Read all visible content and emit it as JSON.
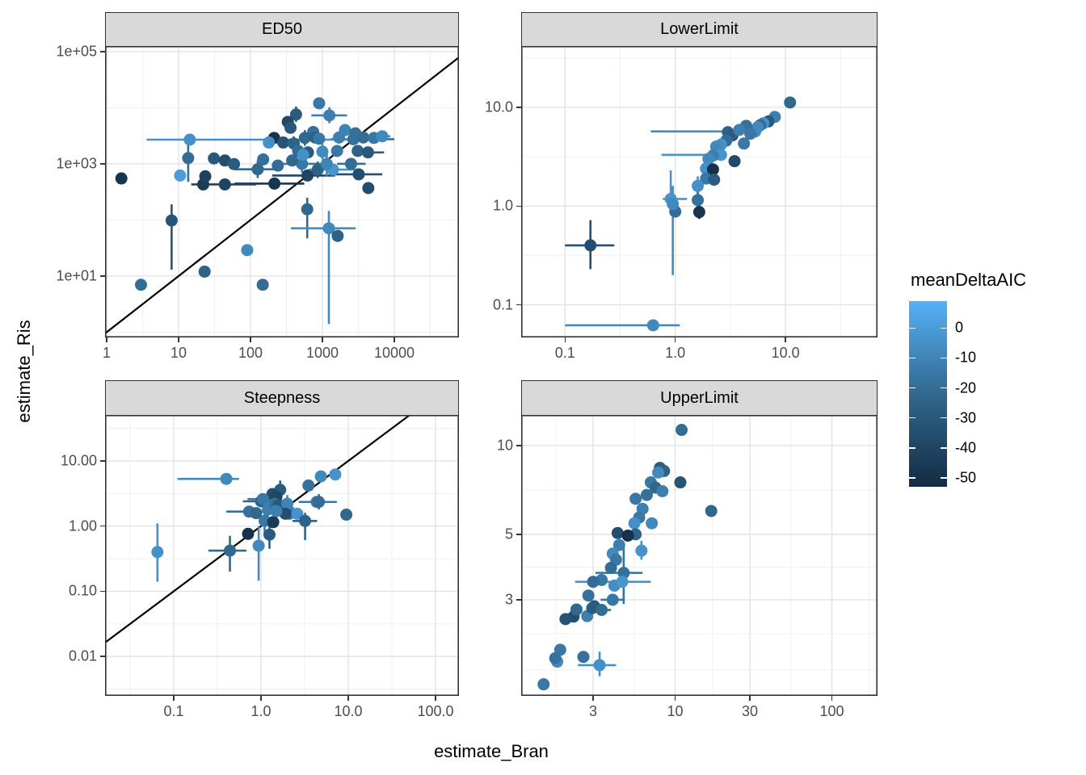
{
  "figure": {
    "background": "#FFFFFF"
  },
  "axis_titles": {
    "x": "estimate_Bran",
    "y": "estimate_Ris"
  },
  "legend": {
    "title": "meanDeltaAIC",
    "tick_values": [
      0,
      -10,
      -20,
      -30,
      -40,
      -50
    ],
    "tick_labels": [
      "0",
      "-10",
      "-20",
      "-30",
      "-40",
      "-50"
    ],
    "domain_max": 9,
    "domain_min": -53,
    "color_high": "#56B1F7",
    "color_mid": "#31688E",
    "color_low": "#132B43"
  },
  "style": {
    "grid_major": "#E3E3E3",
    "grid_minor": "#F0F0F0",
    "panel_border": "#333333",
    "refline_color": "#000000",
    "point_radius": 7.5
  },
  "points_format": [
    "x",
    "y",
    "meanDeltaAIC",
    "xmin",
    "xmax",
    "ymin",
    "ymax"
  ],
  "chart_data": [
    {
      "type": "scatter",
      "label": "ED50",
      "reference_line": "y=x",
      "xlim": [
        0.949,
        79250
      ],
      "ylim": [
        0.806,
        126000
      ],
      "x_ticks": [
        {
          "v": 1,
          "label": "1"
        },
        {
          "v": 10,
          "label": "10"
        },
        {
          "v": 100,
          "label": "100"
        },
        {
          "v": 1000,
          "label": "1000"
        },
        {
          "v": 10000,
          "label": "10000"
        }
      ],
      "y_ticks": [
        {
          "v": 100000,
          "label": "1e+05"
        },
        {
          "v": 1000,
          "label": "1e+03"
        },
        {
          "v": 10,
          "label": "1e+01"
        }
      ],
      "x_minor": [
        3.162,
        31.62,
        316.2,
        3162,
        31620
      ],
      "y_minor": [
        1,
        100,
        10000
      ],
      "points": [
        [
          900,
          12000,
          -15
        ],
        [
          430,
          7600,
          -28,
          null,
          null,
          5600,
          10500
        ],
        [
          1250,
          7300,
          -12,
          700,
          2200,
          5300,
          10200
        ],
        [
          330,
          5600,
          -38
        ],
        [
          360,
          4400,
          -30
        ],
        [
          745,
          3700,
          -18
        ],
        [
          2060,
          4000,
          -10
        ],
        [
          2870,
          3500,
          -18
        ],
        [
          570,
          2900,
          -22,
          null,
          null,
          2100,
          4000
        ],
        [
          790,
          2950,
          -25
        ],
        [
          900,
          2800,
          -15
        ],
        [
          1700,
          2950,
          -12,
          null,
          null,
          2300,
          3800
        ],
        [
          2700,
          2750,
          -18,
          1300,
          10000
        ],
        [
          3700,
          2950,
          -20
        ],
        [
          5200,
          2900,
          -15,
          3800,
          7000
        ],
        [
          6800,
          3100,
          -8,
          5300,
          8800
        ],
        [
          213,
          2900,
          -48
        ],
        [
          180,
          2400,
          -5
        ],
        [
          285,
          2400,
          -32
        ],
        [
          400,
          2300,
          -25,
          null,
          null,
          1700,
          3100
        ],
        [
          14.3,
          2700,
          -5,
          3.6,
          2300
        ],
        [
          13.6,
          1270,
          -20,
          null,
          null,
          480,
          3200
        ],
        [
          31,
          1250,
          -30
        ],
        [
          44,
          1150,
          -35
        ],
        [
          59,
          990,
          -28
        ],
        [
          150,
          1200,
          -18
        ],
        [
          240,
          930,
          -20
        ],
        [
          126,
          800,
          -22,
          60,
          260,
          560,
          1150
        ],
        [
          520,
          1000,
          -15,
          230,
          1150,
          700,
          1400
        ],
        [
          860,
          790,
          -25,
          null,
          null,
          560,
          1100
        ],
        [
          1400,
          790,
          -3,
          640,
          3000
        ],
        [
          3200,
          650,
          -35,
          1500,
          6800
        ],
        [
          620,
          620,
          -40,
          200,
          1500
        ],
        [
          215,
          445,
          -48,
          60,
          560
        ],
        [
          44,
          430,
          -40,
          15,
          120
        ],
        [
          22,
          430,
          -45
        ],
        [
          4350,
          370,
          -35
        ],
        [
          10.5,
          620,
          0
        ],
        [
          23.5,
          600,
          -42
        ],
        [
          1.6,
          550,
          -48
        ],
        [
          8,
          98,
          -32,
          null,
          null,
          13,
          190
        ],
        [
          3.0,
          7.0,
          -20
        ],
        [
          23,
          12,
          -25
        ],
        [
          90,
          29,
          -8
        ],
        [
          148,
          7,
          -20
        ],
        [
          615,
          155,
          -22,
          null,
          null,
          47,
          250
        ],
        [
          1230,
          71,
          -8,
          365,
          2900,
          1.4,
          145
        ],
        [
          1630,
          52,
          -25
        ],
        [
          460,
          1700,
          -20
        ],
        [
          630,
          1600,
          -28
        ],
        [
          540,
          1450,
          -5
        ],
        [
          1000,
          1650,
          -8,
          null,
          null,
          1200,
          2300
        ],
        [
          1600,
          1700,
          -15
        ],
        [
          3100,
          1700,
          -25
        ],
        [
          4300,
          1600,
          -30,
          2600,
          7200
        ],
        [
          380,
          1150,
          -22
        ],
        [
          1150,
          1000,
          -10,
          null,
          null,
          600,
          1600
        ],
        [
          2500,
          1000,
          -20,
          1600,
          4000
        ]
      ]
    },
    {
      "type": "scatter",
      "label": "LowerLimit",
      "reference_line": "y=x",
      "xlim": [
        0.04,
        68.4
      ],
      "ylim": [
        0.0467,
        41.8
      ],
      "x_ticks": [
        {
          "v": 0.1,
          "label": "0.1"
        },
        {
          "v": 1,
          "label": "1.0"
        },
        {
          "v": 10,
          "label": "10.0"
        }
      ],
      "y_ticks": [
        {
          "v": 10,
          "label": "10.0"
        },
        {
          "v": 1,
          "label": "1.0"
        },
        {
          "v": 0.1,
          "label": "0.1"
        }
      ],
      "x_minor": [
        0.3162,
        3.162,
        31.62
      ],
      "y_minor": [
        0.3162,
        3.162,
        31.62
      ],
      "points": [
        [
          11,
          11.2,
          -22
        ],
        [
          8,
          8,
          -12
        ],
        [
          7,
          7.2,
          -30
        ],
        [
          6.3,
          6.9,
          -5
        ],
        [
          5.9,
          6.6,
          -20
        ],
        [
          5.6,
          6.3,
          -8
        ],
        [
          5.3,
          5.7,
          -8,
          0.6,
          5.8
        ],
        [
          4.4,
          6.5,
          -18
        ],
        [
          3.0,
          5.6,
          -25
        ],
        [
          3.3,
          5.2,
          -28
        ],
        [
          3.8,
          5.9,
          -12
        ],
        [
          4.8,
          5.4,
          -15
        ],
        [
          2.9,
          4.6,
          -20
        ],
        [
          4.2,
          4.3,
          -15
        ],
        [
          2.6,
          4.2,
          -5
        ],
        [
          2.35,
          4.0,
          -8
        ],
        [
          2.6,
          3.3,
          -3,
          0.75,
          2.65
        ],
        [
          2.2,
          3.25,
          -12
        ],
        [
          2.0,
          3.0,
          -8
        ],
        [
          3.45,
          2.85,
          -38
        ],
        [
          1.9,
          2.4,
          -5
        ],
        [
          2.2,
          2.35,
          -50
        ],
        [
          1.9,
          1.9,
          -15
        ],
        [
          2.25,
          1.85,
          -28
        ],
        [
          1.6,
          1.6,
          -5,
          null,
          null,
          1.3,
          2.0
        ],
        [
          1.6,
          1.15,
          -18,
          null,
          null,
          0.9,
          1.5
        ],
        [
          1.65,
          0.87,
          -48,
          null,
          null,
          0.74,
          1.26
        ],
        [
          0.91,
          1.18,
          -3,
          0.77,
          1.28,
          0.85,
          2.3
        ],
        [
          1.0,
          0.88,
          -20
        ],
        [
          0.95,
          1.05,
          -8,
          null,
          null,
          0.2,
          1.6
        ],
        [
          0.17,
          0.4,
          -35,
          0.1,
          0.28,
          0.23,
          0.72
        ],
        [
          0.63,
          0.062,
          -8,
          0.1,
          1.1
        ]
      ]
    },
    {
      "type": "scatter",
      "label": "Steepness",
      "reference_line": "y=x",
      "xlim": [
        0.0163,
        185.7
      ],
      "ylim": [
        0.00248,
        50.8
      ],
      "x_ticks": [
        {
          "v": 0.1,
          "label": "0.1"
        },
        {
          "v": 1,
          "label": "1.0"
        },
        {
          "v": 10,
          "label": "10.0"
        },
        {
          "v": 100,
          "label": "100.0"
        }
      ],
      "y_ticks": [
        {
          "v": 10,
          "label": "10.00"
        },
        {
          "v": 1,
          "label": "1.00"
        },
        {
          "v": 0.1,
          "label": "0.10"
        },
        {
          "v": 0.01,
          "label": "0.01"
        }
      ],
      "x_minor": [
        0.0316,
        0.3162,
        3.162,
        31.62
      ],
      "y_minor": [
        0.00316,
        0.0316,
        0.3162,
        3.162,
        31.62
      ],
      "points": [
        [
          0.4,
          5.3,
          -8,
          0.11,
          0.56
        ],
        [
          3.5,
          4.2,
          -18
        ],
        [
          4.85,
          5.8,
          -8
        ],
        [
          7.1,
          6.2,
          -4
        ],
        [
          1.66,
          3.6,
          -28,
          null,
          null,
          2.6,
          5.0
        ],
        [
          1.35,
          3.1,
          -35
        ],
        [
          4.35,
          2.35,
          -15,
          2.7,
          7.4
        ],
        [
          1.0,
          2.4,
          -25,
          0.62,
          1.65
        ],
        [
          1.5,
          2.8,
          -40
        ],
        [
          0.73,
          1.67,
          -18,
          0.4,
          1.15
        ],
        [
          0.88,
          1.58,
          -22
        ],
        [
          1.2,
          1.8,
          -12,
          null,
          null,
          1.3,
          2.5
        ],
        [
          1.78,
          1.9,
          -8,
          1.3,
          2.4
        ],
        [
          2.1,
          1.55,
          -18
        ],
        [
          2.6,
          1.55,
          -4
        ],
        [
          3.2,
          1.2,
          -25,
          2.3,
          4.4,
          0.61,
          1.6
        ],
        [
          1.1,
          1.2,
          -15,
          null,
          null,
          0.8,
          1.8
        ],
        [
          1.38,
          1.15,
          -45
        ],
        [
          1.25,
          0.74,
          -28,
          null,
          null,
          0.45,
          1.2
        ],
        [
          0.94,
          0.5,
          -8,
          null,
          null,
          0.145,
          1.0
        ],
        [
          0.71,
          0.76,
          -50
        ],
        [
          0.44,
          0.42,
          -22,
          0.25,
          0.68,
          0.2,
          0.71
        ],
        [
          0.065,
          0.4,
          -5,
          null,
          null,
          0.14,
          1.1
        ],
        [
          9.5,
          1.5,
          -22,
          null,
          null,
          1.25,
          1.8
        ],
        [
          1.45,
          2.2,
          -18
        ],
        [
          1.6,
          2.1,
          -30
        ],
        [
          2.0,
          2.2,
          -10,
          null,
          null,
          1.6,
          3.0
        ],
        [
          1.05,
          2.6,
          -15,
          0.7,
          1.5
        ],
        [
          1.9,
          1.55,
          -35
        ],
        [
          1.5,
          1.7,
          -12,
          1.1,
          2.1,
          1.2,
          2.3
        ],
        [
          4.6,
          2.35,
          -20,
          null,
          null,
          1.8,
          3.1
        ]
      ]
    },
    {
      "type": "scatter",
      "label": "UpperLimit",
      "reference_line": "y=x",
      "xlim": [
        1.043,
        195.5
      ],
      "ylim": [
        1.416,
        12.7
      ],
      "x_ticks": [
        {
          "v": 3,
          "label": "3"
        },
        {
          "v": 10,
          "label": "10"
        },
        {
          "v": 30,
          "label": "30"
        },
        {
          "v": 100,
          "label": "100"
        }
      ],
      "y_ticks": [
        {
          "v": 10,
          "label": "10"
        },
        {
          "v": 5,
          "label": "5"
        },
        {
          "v": 3,
          "label": "3"
        }
      ],
      "x_minor": [
        1.732,
        5.477,
        17.32,
        54.77,
        173.2
      ],
      "y_minor": [
        7.07,
        3.873,
        2.3,
        1.732
      ],
      "points": [
        [
          11,
          11.3,
          -20
        ],
        [
          8.0,
          8.4,
          -28
        ],
        [
          8.5,
          8.2,
          -25
        ],
        [
          7.8,
          8.1,
          -8
        ],
        [
          7.0,
          7.5,
          -15
        ],
        [
          7.5,
          7.2,
          -22
        ],
        [
          10.8,
          7.5,
          -32
        ],
        [
          8.3,
          7.0,
          -12
        ],
        [
          5.6,
          6.6,
          -15
        ],
        [
          6.6,
          6.8,
          -18
        ],
        [
          17,
          6.0,
          -22
        ],
        [
          6.2,
          6.1,
          -12
        ],
        [
          5.9,
          5.7,
          -15
        ],
        [
          5.5,
          5.45,
          -5
        ],
        [
          7.1,
          5.45,
          -8
        ],
        [
          5.6,
          5.0,
          -25
        ],
        [
          4.3,
          5.05,
          -35
        ],
        [
          5.0,
          4.95,
          -50
        ],
        [
          4.4,
          4.6,
          -12
        ],
        [
          6.1,
          4.4,
          -4,
          null,
          null,
          4.1,
          4.75
        ],
        [
          4.0,
          4.3,
          -8
        ],
        [
          4.2,
          4.1,
          -15
        ],
        [
          3.9,
          3.85,
          -20
        ],
        [
          4.7,
          3.7,
          -18,
          3.1,
          6.2,
          2.9,
          4.65
        ],
        [
          3.4,
          3.5,
          -15
        ],
        [
          4.1,
          3.35,
          -6
        ],
        [
          3.0,
          3.45,
          -20
        ],
        [
          4.6,
          3.45,
          -3,
          2.3,
          7.0
        ],
        [
          2.8,
          3.1,
          -18
        ],
        [
          4.0,
          3.0,
          -15,
          3.35,
          4.75
        ],
        [
          2.25,
          2.63,
          -35
        ],
        [
          3.05,
          2.85,
          -30
        ],
        [
          2.35,
          2.78,
          -22
        ],
        [
          2.75,
          2.64,
          -12
        ],
        [
          2.96,
          2.81,
          -28
        ],
        [
          3.4,
          2.77,
          -20,
          3.0,
          3.9
        ],
        [
          2.0,
          2.58,
          -33
        ],
        [
          1.85,
          2.03,
          -15
        ],
        [
          1.77,
          1.85,
          -8
        ],
        [
          1.72,
          1.9,
          -18
        ],
        [
          1.45,
          1.55,
          -15
        ],
        [
          2.6,
          1.92,
          -18
        ],
        [
          3.3,
          1.8,
          -5,
          2.4,
          4.2,
          1.65,
          2.0
        ]
      ]
    }
  ]
}
